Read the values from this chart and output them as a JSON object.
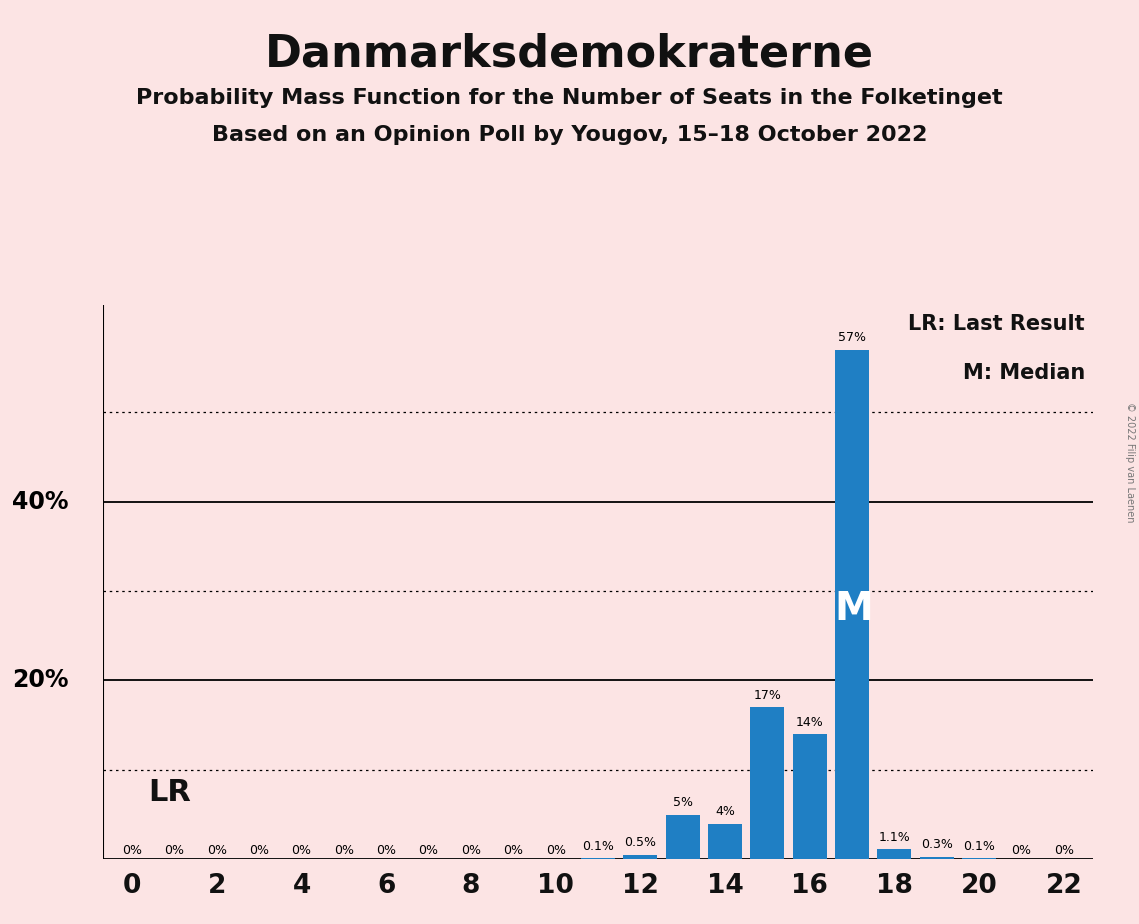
{
  "title": "Danmarksdemokraterne",
  "subtitle1": "Probability Mass Function for the Number of Seats in the Folketinget",
  "subtitle2": "Based on an Opinion Poll by Yougov, 15–18 October 2022",
  "copyright": "© 2022 Filip van Laenen",
  "seats": [
    0,
    1,
    2,
    3,
    4,
    5,
    6,
    7,
    8,
    9,
    10,
    11,
    12,
    13,
    14,
    15,
    16,
    17,
    18,
    19,
    20,
    21,
    22
  ],
  "values": [
    0,
    0,
    0,
    0,
    0,
    0,
    0,
    0,
    0,
    0,
    0,
    0.1,
    0.5,
    5,
    4,
    17,
    14,
    57,
    1.1,
    0.3,
    0.1,
    0,
    0
  ],
  "bar_color": "#1f7fc4",
  "background_color": "#fce4e4",
  "title_fontsize": 32,
  "subtitle_fontsize": 16,
  "ylabel_solid": [
    0,
    20,
    40
  ],
  "ylabel_dotted": [
    10,
    30,
    50
  ],
  "ylim": [
    0,
    62
  ],
  "xlim": [
    -0.7,
    22.7
  ],
  "xticks": [
    0,
    2,
    4,
    6,
    8,
    10,
    12,
    14,
    16,
    18,
    20,
    22
  ],
  "lr_seat": 0,
  "lr_label": "LR",
  "median_seat": 17,
  "median_label": "M",
  "legend_lr": "LR: Last Result",
  "legend_m": "M: Median",
  "bar_label_fontsize": 10,
  "axis_label_fontsize": 17,
  "legend_fontsize": 15,
  "lr_fontsize": 22,
  "median_fontsize": 28
}
